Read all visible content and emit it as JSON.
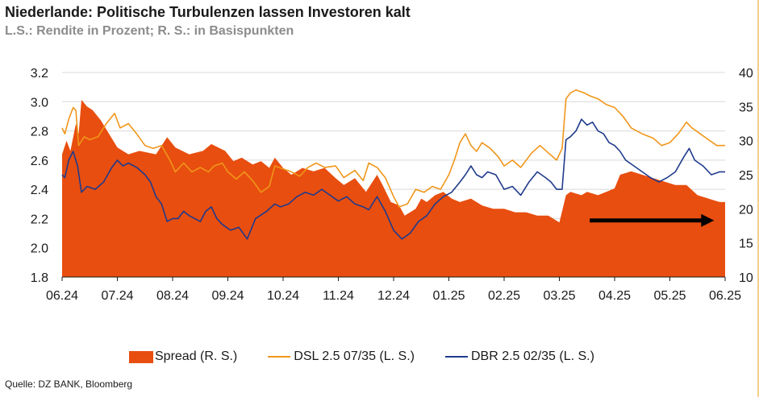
{
  "header": {
    "title": "Niederlande: Politische Turbulenzen lassen Investoren kalt",
    "subtitle": "L.S.: Rendite in Prozent; R. S.: in Basispunkten"
  },
  "source": "Quelle: DZ BANK, Bloomberg",
  "colors": {
    "spread": "#e84e0f",
    "dsl": "#f0961a",
    "dbr": "#1f3a8c",
    "arrow": "#000000",
    "edge": "#f5d08c"
  },
  "chart_data": {
    "type": "area",
    "x_ticks": [
      "06.24",
      "07.24",
      "08.24",
      "09.24",
      "10.24",
      "11.24",
      "12.24",
      "01.25",
      "02.25",
      "03.25",
      "04.25",
      "05.25",
      "06.25"
    ],
    "y_left": {
      "ticks": [
        "3.2",
        "3.0",
        "2.8",
        "2.6",
        "2.4",
        "2.2",
        "2.0",
        "1.8"
      ],
      "ylim": [
        1.8,
        3.2
      ]
    },
    "y_right": {
      "ticks": [
        "40",
        "35",
        "30",
        "25",
        "20",
        "15",
        "10"
      ],
      "ylim": [
        10,
        40
      ]
    },
    "legend_position": "bottom",
    "annotation": "arrow pointing right (sideways trend of spread since 03.25)",
    "series": [
      {
        "name": "Spread (R. S.)",
        "axis": "right",
        "style": "area",
        "points": [
          [
            0.0,
            28.0
          ],
          [
            0.08,
            30.0
          ],
          [
            0.15,
            28.5
          ],
          [
            0.25,
            32.5
          ],
          [
            0.3,
            31.0
          ],
          [
            0.35,
            36.0
          ],
          [
            0.45,
            35.0
          ],
          [
            0.55,
            34.5
          ],
          [
            0.7,
            33.0
          ],
          [
            0.85,
            31.0
          ],
          [
            1.0,
            29.0
          ],
          [
            1.2,
            28.0
          ],
          [
            1.4,
            28.5
          ],
          [
            1.7,
            28.0
          ],
          [
            1.9,
            30.5
          ],
          [
            2.05,
            29.0
          ],
          [
            2.3,
            28.0
          ],
          [
            2.55,
            28.5
          ],
          [
            2.7,
            29.5
          ],
          [
            2.95,
            28.5
          ],
          [
            3.1,
            27.0
          ],
          [
            3.25,
            27.5
          ],
          [
            3.45,
            26.5
          ],
          [
            3.6,
            27.0
          ],
          [
            3.75,
            26.0
          ],
          [
            3.85,
            27.5
          ],
          [
            4.0,
            26.0
          ],
          [
            4.15,
            25.0
          ],
          [
            4.35,
            26.0
          ],
          [
            4.55,
            25.5
          ],
          [
            4.75,
            26.0
          ],
          [
            4.95,
            24.5
          ],
          [
            5.1,
            23.5
          ],
          [
            5.3,
            24.5
          ],
          [
            5.5,
            22.5
          ],
          [
            5.7,
            25.0
          ],
          [
            5.8,
            23.5
          ],
          [
            5.95,
            21.0
          ],
          [
            6.1,
            20.5
          ],
          [
            6.2,
            19.0
          ],
          [
            6.4,
            20.0
          ],
          [
            6.5,
            21.5
          ],
          [
            6.6,
            21.0
          ],
          [
            6.75,
            22.0
          ],
          [
            6.9,
            22.5
          ],
          [
            7.05,
            21.5
          ],
          [
            7.2,
            21.0
          ],
          [
            7.4,
            21.5
          ],
          [
            7.6,
            20.5
          ],
          [
            7.8,
            20.0
          ],
          [
            8.0,
            20.0
          ],
          [
            8.2,
            19.5
          ],
          [
            8.4,
            19.5
          ],
          [
            8.6,
            19.0
          ],
          [
            8.8,
            19.0
          ],
          [
            9.0,
            18.0
          ],
          [
            9.12,
            22.0
          ],
          [
            9.2,
            22.5
          ],
          [
            9.4,
            22.0
          ],
          [
            9.5,
            22.5
          ],
          [
            9.7,
            22.0
          ],
          [
            9.85,
            22.5
          ],
          [
            10.0,
            23.0
          ],
          [
            10.1,
            25.0
          ],
          [
            10.3,
            25.5
          ],
          [
            10.5,
            25.0
          ],
          [
            10.7,
            24.5
          ],
          [
            10.9,
            24.0
          ],
          [
            11.1,
            23.5
          ],
          [
            11.3,
            23.5
          ],
          [
            11.5,
            22.0
          ],
          [
            11.7,
            21.5
          ],
          [
            11.9,
            21.0
          ],
          [
            12.0,
            21.0
          ]
        ]
      },
      {
        "name": "DSL 2.5 07/35 (L. S.)",
        "axis": "left",
        "style": "line",
        "points": [
          [
            0.0,
            2.82
          ],
          [
            0.05,
            2.78
          ],
          [
            0.12,
            2.88
          ],
          [
            0.2,
            2.96
          ],
          [
            0.25,
            2.94
          ],
          [
            0.3,
            2.7
          ],
          [
            0.4,
            2.76
          ],
          [
            0.5,
            2.74
          ],
          [
            0.65,
            2.76
          ],
          [
            0.8,
            2.85
          ],
          [
            0.95,
            2.92
          ],
          [
            1.05,
            2.82
          ],
          [
            1.2,
            2.85
          ],
          [
            1.35,
            2.78
          ],
          [
            1.5,
            2.7
          ],
          [
            1.65,
            2.68
          ],
          [
            1.8,
            2.7
          ],
          [
            1.95,
            2.6
          ],
          [
            2.05,
            2.52
          ],
          [
            2.2,
            2.58
          ],
          [
            2.35,
            2.52
          ],
          [
            2.5,
            2.55
          ],
          [
            2.65,
            2.52
          ],
          [
            2.75,
            2.56
          ],
          [
            2.9,
            2.58
          ],
          [
            3.0,
            2.52
          ],
          [
            3.15,
            2.47
          ],
          [
            3.3,
            2.52
          ],
          [
            3.45,
            2.46
          ],
          [
            3.6,
            2.38
          ],
          [
            3.75,
            2.42
          ],
          [
            3.85,
            2.56
          ],
          [
            4.0,
            2.54
          ],
          [
            4.15,
            2.52
          ],
          [
            4.3,
            2.49
          ],
          [
            4.45,
            2.55
          ],
          [
            4.6,
            2.58
          ],
          [
            4.75,
            2.55
          ],
          [
            4.95,
            2.56
          ],
          [
            5.1,
            2.48
          ],
          [
            5.3,
            2.53
          ],
          [
            5.45,
            2.46
          ],
          [
            5.55,
            2.58
          ],
          [
            5.7,
            2.55
          ],
          [
            5.85,
            2.48
          ],
          [
            6.0,
            2.35
          ],
          [
            6.1,
            2.28
          ],
          [
            6.25,
            2.3
          ],
          [
            6.4,
            2.4
          ],
          [
            6.55,
            2.38
          ],
          [
            6.7,
            2.42
          ],
          [
            6.85,
            2.4
          ],
          [
            7.0,
            2.5
          ],
          [
            7.1,
            2.6
          ],
          [
            7.2,
            2.72
          ],
          [
            7.3,
            2.78
          ],
          [
            7.4,
            2.7
          ],
          [
            7.5,
            2.66
          ],
          [
            7.6,
            2.72
          ],
          [
            7.75,
            2.68
          ],
          [
            7.9,
            2.62
          ],
          [
            8.0,
            2.56
          ],
          [
            8.15,
            2.6
          ],
          [
            8.3,
            2.55
          ],
          [
            8.5,
            2.65
          ],
          [
            8.65,
            2.7
          ],
          [
            8.8,
            2.65
          ],
          [
            8.95,
            2.6
          ],
          [
            9.05,
            2.68
          ],
          [
            9.12,
            3.02
          ],
          [
            9.2,
            3.06
          ],
          [
            9.3,
            3.08
          ],
          [
            9.45,
            3.06
          ],
          [
            9.55,
            3.04
          ],
          [
            9.7,
            3.02
          ],
          [
            9.85,
            2.98
          ],
          [
            10.0,
            2.96
          ],
          [
            10.15,
            2.9
          ],
          [
            10.3,
            2.82
          ],
          [
            10.5,
            2.78
          ],
          [
            10.7,
            2.75
          ],
          [
            10.85,
            2.7
          ],
          [
            11.0,
            2.72
          ],
          [
            11.15,
            2.78
          ],
          [
            11.3,
            2.86
          ],
          [
            11.4,
            2.82
          ],
          [
            11.55,
            2.78
          ],
          [
            11.7,
            2.74
          ],
          [
            11.85,
            2.7
          ],
          [
            12.0,
            2.7
          ]
        ]
      },
      {
        "name": "DBR 2.5 02/35 (L. S.)",
        "axis": "left",
        "style": "line",
        "points": [
          [
            0.0,
            2.5
          ],
          [
            0.05,
            2.48
          ],
          [
            0.12,
            2.6
          ],
          [
            0.2,
            2.66
          ],
          [
            0.28,
            2.56
          ],
          [
            0.35,
            2.38
          ],
          [
            0.45,
            2.42
          ],
          [
            0.6,
            2.4
          ],
          [
            0.75,
            2.45
          ],
          [
            0.9,
            2.55
          ],
          [
            1.0,
            2.6
          ],
          [
            1.1,
            2.56
          ],
          [
            1.2,
            2.58
          ],
          [
            1.35,
            2.55
          ],
          [
            1.5,
            2.5
          ],
          [
            1.6,
            2.45
          ],
          [
            1.7,
            2.35
          ],
          [
            1.8,
            2.3
          ],
          [
            1.9,
            2.18
          ],
          [
            2.0,
            2.2
          ],
          [
            2.1,
            2.2
          ],
          [
            2.2,
            2.25
          ],
          [
            2.3,
            2.22
          ],
          [
            2.4,
            2.2
          ],
          [
            2.5,
            2.18
          ],
          [
            2.6,
            2.25
          ],
          [
            2.7,
            2.28
          ],
          [
            2.8,
            2.2
          ],
          [
            2.9,
            2.16
          ],
          [
            3.05,
            2.12
          ],
          [
            3.2,
            2.14
          ],
          [
            3.35,
            2.06
          ],
          [
            3.5,
            2.2
          ],
          [
            3.7,
            2.25
          ],
          [
            3.85,
            2.3
          ],
          [
            3.95,
            2.28
          ],
          [
            4.1,
            2.3
          ],
          [
            4.25,
            2.35
          ],
          [
            4.4,
            2.38
          ],
          [
            4.55,
            2.36
          ],
          [
            4.7,
            2.4
          ],
          [
            4.85,
            2.36
          ],
          [
            5.0,
            2.32
          ],
          [
            5.15,
            2.35
          ],
          [
            5.3,
            2.3
          ],
          [
            5.45,
            2.28
          ],
          [
            5.55,
            2.26
          ],
          [
            5.7,
            2.35
          ],
          [
            5.85,
            2.25
          ],
          [
            6.0,
            2.12
          ],
          [
            6.15,
            2.06
          ],
          [
            6.3,
            2.1
          ],
          [
            6.45,
            2.18
          ],
          [
            6.6,
            2.22
          ],
          [
            6.75,
            2.3
          ],
          [
            6.9,
            2.35
          ],
          [
            7.05,
            2.38
          ],
          [
            7.2,
            2.45
          ],
          [
            7.3,
            2.5
          ],
          [
            7.4,
            2.56
          ],
          [
            7.5,
            2.5
          ],
          [
            7.6,
            2.48
          ],
          [
            7.7,
            2.52
          ],
          [
            7.85,
            2.5
          ],
          [
            8.0,
            2.4
          ],
          [
            8.15,
            2.42
          ],
          [
            8.3,
            2.36
          ],
          [
            8.45,
            2.45
          ],
          [
            8.6,
            2.52
          ],
          [
            8.75,
            2.48
          ],
          [
            8.85,
            2.45
          ],
          [
            8.95,
            2.4
          ],
          [
            9.05,
            2.4
          ],
          [
            9.12,
            2.74
          ],
          [
            9.2,
            2.76
          ],
          [
            9.3,
            2.8
          ],
          [
            9.4,
            2.88
          ],
          [
            9.5,
            2.84
          ],
          [
            9.6,
            2.86
          ],
          [
            9.7,
            2.8
          ],
          [
            9.8,
            2.78
          ],
          [
            9.9,
            2.72
          ],
          [
            10.0,
            2.7
          ],
          [
            10.1,
            2.66
          ],
          [
            10.2,
            2.6
          ],
          [
            10.35,
            2.56
          ],
          [
            10.5,
            2.52
          ],
          [
            10.65,
            2.48
          ],
          [
            10.8,
            2.45
          ],
          [
            10.95,
            2.48
          ],
          [
            11.1,
            2.52
          ],
          [
            11.25,
            2.62
          ],
          [
            11.35,
            2.68
          ],
          [
            11.45,
            2.6
          ],
          [
            11.6,
            2.56
          ],
          [
            11.75,
            2.5
          ],
          [
            11.9,
            2.52
          ],
          [
            12.0,
            2.52
          ]
        ]
      }
    ]
  }
}
